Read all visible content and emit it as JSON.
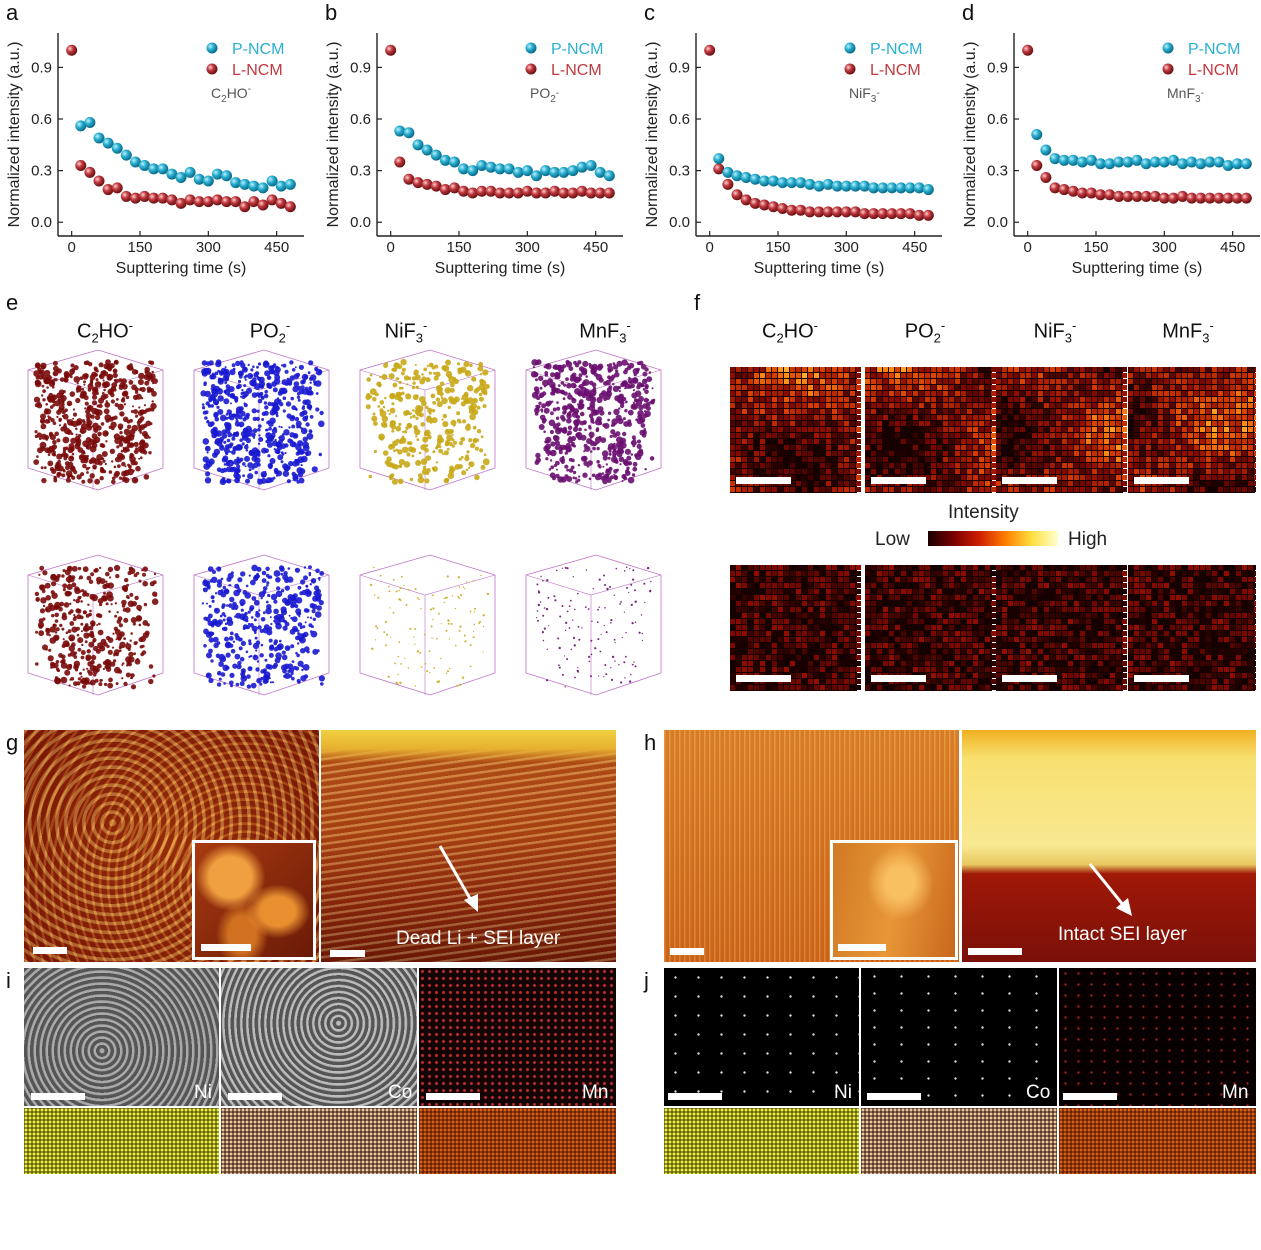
{
  "panel_letters": {
    "a": "a",
    "b": "b",
    "c": "c",
    "d": "d",
    "e": "e",
    "f": "f",
    "g": "g",
    "h": "h",
    "i": "i",
    "j": "j"
  },
  "colors": {
    "p_ncm": "#2bb0d0",
    "l_ncm": "#c0393f",
    "c2ho": "#7a0a0a",
    "po2": "#1a1ad0",
    "nif3": "#c8a818",
    "mnf3": "#6a1070"
  },
  "legend": {
    "p": "P-NCM",
    "l": "L-NCM"
  },
  "axis": {
    "ylabel": "Normalized intensity (a.u.)",
    "xlabel": "Supttering time (s)"
  },
  "ion_labels": {
    "c2ho": {
      "base": "C",
      "sub": "2",
      "rest": "HO",
      "sup": "-"
    },
    "po2": {
      "base": "PO",
      "sub": "2",
      "rest": "",
      "sup": "-"
    },
    "nif3": {
      "base": "NiF",
      "sub": "3",
      "rest": "",
      "sup": "-"
    },
    "mnf3": {
      "base": "MnF",
      "sub": "3",
      "rest": "",
      "sup": "-"
    }
  },
  "intensity_bar": {
    "title": "Intensity",
    "low": "Low",
    "high": "High"
  },
  "sem": {
    "g_label": "Dead Li + SEI layer",
    "h_label": "Intact SEI layer"
  },
  "elements": {
    "ni": "Ni",
    "co": "Co",
    "mn": "Mn"
  },
  "chart_data": [
    {
      "type": "scatter",
      "panel": "a",
      "annotation": "C2HO-",
      "xlim": [
        -30,
        510
      ],
      "ylim": [
        -0.08,
        1.1
      ],
      "xticks": [
        0,
        150,
        300,
        450
      ],
      "yticks": [
        0.0,
        0.3,
        0.6,
        0.9
      ],
      "series": [
        {
          "name": "P-NCM",
          "x": [
            20,
            40,
            60,
            80,
            100,
            120,
            140,
            160,
            180,
            200,
            220,
            240,
            260,
            280,
            300,
            320,
            340,
            360,
            380,
            400,
            420,
            440,
            460,
            480
          ],
          "y": [
            0.56,
            0.58,
            0.49,
            0.46,
            0.43,
            0.39,
            0.35,
            0.33,
            0.31,
            0.31,
            0.28,
            0.26,
            0.29,
            0.25,
            0.24,
            0.28,
            0.27,
            0.23,
            0.22,
            0.21,
            0.2,
            0.24,
            0.21,
            0.22
          ]
        },
        {
          "name": "L-NCM",
          "x": [
            0,
            20,
            40,
            60,
            80,
            100,
            120,
            140,
            160,
            180,
            200,
            220,
            240,
            260,
            280,
            300,
            320,
            340,
            360,
            380,
            400,
            420,
            440,
            460,
            480
          ],
          "y": [
            1.0,
            0.33,
            0.29,
            0.24,
            0.19,
            0.2,
            0.15,
            0.14,
            0.15,
            0.14,
            0.14,
            0.13,
            0.11,
            0.13,
            0.12,
            0.12,
            0.13,
            0.12,
            0.12,
            0.09,
            0.12,
            0.1,
            0.13,
            0.11,
            0.09
          ]
        }
      ]
    },
    {
      "type": "scatter",
      "panel": "b",
      "annotation": "PO2-",
      "xlim": [
        -30,
        510
      ],
      "ylim": [
        -0.08,
        1.1
      ],
      "xticks": [
        0,
        150,
        300,
        450
      ],
      "yticks": [
        0.0,
        0.3,
        0.6,
        0.9
      ],
      "series": [
        {
          "name": "P-NCM",
          "x": [
            20,
            40,
            60,
            80,
            100,
            120,
            140,
            160,
            180,
            200,
            220,
            240,
            260,
            280,
            300,
            320,
            340,
            360,
            380,
            400,
            420,
            440,
            460,
            480
          ],
          "y": [
            0.53,
            0.52,
            0.45,
            0.42,
            0.39,
            0.36,
            0.35,
            0.31,
            0.3,
            0.33,
            0.32,
            0.31,
            0.31,
            0.29,
            0.3,
            0.27,
            0.3,
            0.29,
            0.29,
            0.3,
            0.32,
            0.33,
            0.29,
            0.27
          ]
        },
        {
          "name": "L-NCM",
          "x": [
            0,
            20,
            40,
            60,
            80,
            100,
            120,
            140,
            160,
            180,
            200,
            220,
            240,
            260,
            280,
            300,
            320,
            340,
            360,
            380,
            400,
            420,
            440,
            460,
            480
          ],
          "y": [
            1.0,
            0.35,
            0.25,
            0.23,
            0.22,
            0.21,
            0.19,
            0.2,
            0.18,
            0.17,
            0.18,
            0.18,
            0.17,
            0.17,
            0.17,
            0.18,
            0.17,
            0.17,
            0.18,
            0.17,
            0.17,
            0.18,
            0.17,
            0.17,
            0.17
          ]
        }
      ]
    },
    {
      "type": "scatter",
      "panel": "c",
      "annotation": "NiF3-",
      "xlim": [
        -30,
        510
      ],
      "ylim": [
        -0.08,
        1.1
      ],
      "xticks": [
        0,
        150,
        300,
        450
      ],
      "yticks": [
        0.0,
        0.3,
        0.6,
        0.9
      ],
      "series": [
        {
          "name": "P-NCM",
          "x": [
            20,
            40,
            60,
            80,
            100,
            120,
            140,
            160,
            180,
            200,
            220,
            240,
            260,
            280,
            300,
            320,
            340,
            360,
            380,
            400,
            420,
            440,
            460,
            480
          ],
          "y": [
            0.37,
            0.29,
            0.27,
            0.26,
            0.25,
            0.24,
            0.24,
            0.23,
            0.23,
            0.23,
            0.22,
            0.21,
            0.22,
            0.21,
            0.21,
            0.21,
            0.21,
            0.2,
            0.2,
            0.2,
            0.2,
            0.2,
            0.2,
            0.19
          ]
        },
        {
          "name": "L-NCM",
          "x": [
            0,
            20,
            40,
            60,
            80,
            100,
            120,
            140,
            160,
            180,
            200,
            220,
            240,
            260,
            280,
            300,
            320,
            340,
            360,
            380,
            400,
            420,
            440,
            460,
            480
          ],
          "y": [
            1.0,
            0.31,
            0.22,
            0.16,
            0.13,
            0.11,
            0.1,
            0.09,
            0.08,
            0.07,
            0.07,
            0.06,
            0.06,
            0.06,
            0.06,
            0.06,
            0.06,
            0.05,
            0.05,
            0.05,
            0.05,
            0.05,
            0.05,
            0.04,
            0.04
          ]
        }
      ]
    },
    {
      "type": "scatter",
      "panel": "d",
      "annotation": "MnF3-",
      "xlim": [
        -30,
        510
      ],
      "ylim": [
        -0.08,
        1.1
      ],
      "xticks": [
        0,
        150,
        300,
        450
      ],
      "yticks": [
        0.0,
        0.3,
        0.6,
        0.9
      ],
      "series": [
        {
          "name": "P-NCM",
          "x": [
            20,
            40,
            60,
            80,
            100,
            120,
            140,
            160,
            180,
            200,
            220,
            240,
            260,
            280,
            300,
            320,
            340,
            360,
            380,
            400,
            420,
            440,
            460,
            480
          ],
          "y": [
            0.51,
            0.42,
            0.37,
            0.36,
            0.36,
            0.35,
            0.36,
            0.34,
            0.34,
            0.35,
            0.35,
            0.36,
            0.34,
            0.35,
            0.35,
            0.36,
            0.34,
            0.35,
            0.34,
            0.35,
            0.35,
            0.33,
            0.34,
            0.34
          ]
        },
        {
          "name": "L-NCM",
          "x": [
            0,
            20,
            40,
            60,
            80,
            100,
            120,
            140,
            160,
            180,
            200,
            220,
            240,
            260,
            280,
            300,
            320,
            340,
            360,
            380,
            400,
            420,
            440,
            460,
            480
          ],
          "y": [
            1.0,
            0.33,
            0.26,
            0.2,
            0.19,
            0.18,
            0.17,
            0.17,
            0.16,
            0.16,
            0.15,
            0.15,
            0.15,
            0.15,
            0.15,
            0.14,
            0.14,
            0.15,
            0.14,
            0.14,
            0.14,
            0.14,
            0.14,
            0.14,
            0.14
          ]
        }
      ]
    }
  ]
}
